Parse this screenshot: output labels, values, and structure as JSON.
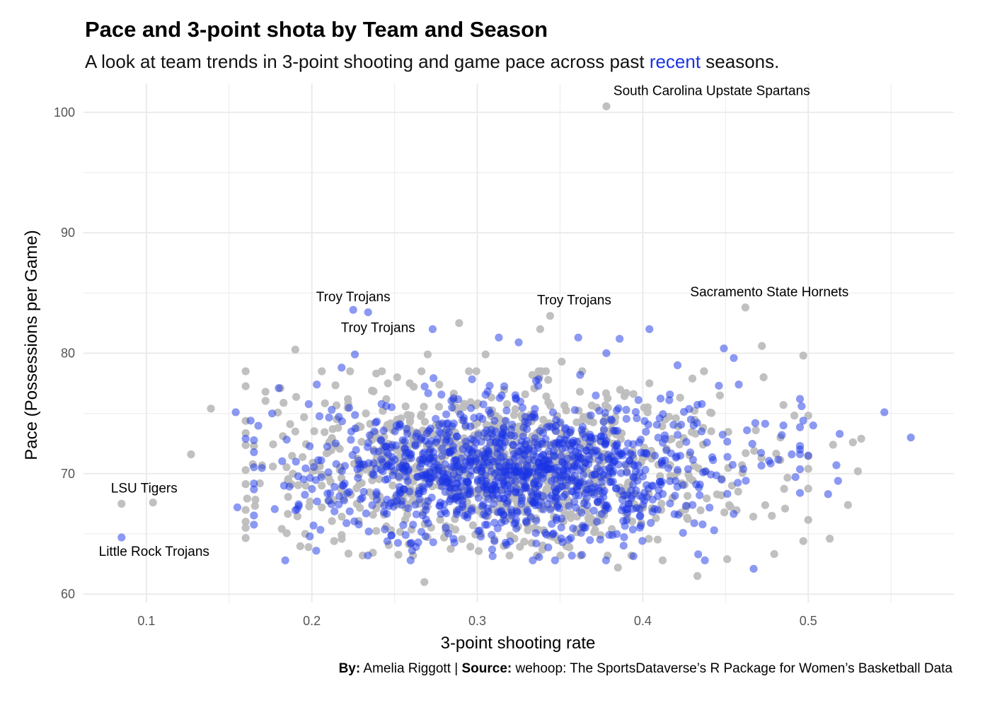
{
  "title": "Pace and 3-point shota by Team and Season",
  "subtitle": {
    "before": "A look at team trends in 3-point shooting and game pace across past ",
    "highlight": "recent",
    "after": " seasons."
  },
  "caption": {
    "by_label": "By:",
    "by_value": " Amelia Riggott | ",
    "source_label": "Source:",
    "source_value": " wehoop: The SportsDataverse’s R Package for Women’s Basketball Data"
  },
  "colors": {
    "past": "#bdbdbd",
    "recent": "#1a33e6",
    "grid": "#ebebeb"
  },
  "chart_data": {
    "type": "scatter",
    "xlabel": "3-point shooting rate",
    "ylabel": "Pace (Possessions per Game)",
    "xlim": [
      0.062,
      0.588
    ],
    "ylim": [
      59.3,
      102.4
    ],
    "xticks": [
      {
        "value": 0.1,
        "label": "0.1"
      },
      {
        "value": 0.2,
        "label": "0.2"
      },
      {
        "value": 0.3,
        "label": "0.3"
      },
      {
        "value": 0.4,
        "label": "0.4"
      },
      {
        "value": 0.5,
        "label": "0.5"
      }
    ],
    "yticks": [
      {
        "value": 60,
        "label": "60"
      },
      {
        "value": 70,
        "label": "70"
      },
      {
        "value": 80,
        "label": "80"
      },
      {
        "value": 90,
        "label": "90"
      },
      {
        "value": 100,
        "label": "100"
      }
    ],
    "grid": true,
    "legend": "none",
    "series": [
      {
        "key": "past",
        "points": [
          [
            0.085,
            67.5
          ],
          [
            0.104,
            67.6
          ],
          [
            0.127,
            71.6
          ],
          [
            0.139,
            75.4
          ],
          [
            0.165,
            72.3
          ],
          [
            0.172,
            76.8
          ],
          [
            0.181,
            77.1
          ],
          [
            0.19,
            80.3
          ],
          [
            0.19,
            73.5
          ],
          [
            0.196,
            65.0
          ],
          [
            0.198,
            63.9
          ],
          [
            0.218,
            64.9
          ],
          [
            0.222,
            75.8
          ],
          [
            0.246,
            77.5
          ],
          [
            0.268,
            61.0
          ],
          [
            0.27,
            79.9
          ],
          [
            0.277,
            77.4
          ],
          [
            0.289,
            82.5
          ],
          [
            0.292,
            75.8
          ],
          [
            0.305,
            79.9
          ],
          [
            0.316,
            64.0
          ],
          [
            0.338,
            82.0
          ],
          [
            0.344,
            83.1
          ],
          [
            0.351,
            79.3
          ],
          [
            0.362,
            76.8
          ],
          [
            0.378,
            100.5
          ],
          [
            0.385,
            62.2
          ],
          [
            0.39,
            76.7
          ],
          [
            0.404,
            77.5
          ],
          [
            0.412,
            62.8
          ],
          [
            0.42,
            74.6
          ],
          [
            0.433,
            61.5
          ],
          [
            0.43,
            77.9
          ],
          [
            0.437,
            78.5
          ],
          [
            0.451,
            62.9
          ],
          [
            0.462,
            83.8
          ],
          [
            0.472,
            80.6
          ],
          [
            0.473,
            78.0
          ],
          [
            0.478,
            66.5
          ],
          [
            0.485,
            75.7
          ],
          [
            0.486,
            67.1
          ],
          [
            0.497,
            64.4
          ],
          [
            0.497,
            79.8
          ],
          [
            0.5,
            70.4
          ],
          [
            0.513,
            64.6
          ],
          [
            0.515,
            72.4
          ],
          [
            0.524,
            67.4
          ],
          [
            0.527,
            72.6
          ],
          [
            0.53,
            70.2
          ],
          [
            0.532,
            72.9
          ]
        ],
        "cloud": {
          "count": 950,
          "x_mean": 0.315,
          "x_sd": 0.068,
          "y_mean": 70.5,
          "y_sd": 3.2,
          "x_range": [
            0.16,
            0.5
          ],
          "y_range": [
            63.2,
            78.5
          ]
        }
      },
      {
        "key": "recent",
        "points": [
          [
            0.085,
            64.7
          ],
          [
            0.154,
            75.1
          ],
          [
            0.155,
            67.2
          ],
          [
            0.16,
            72.9
          ],
          [
            0.163,
            74.4
          ],
          [
            0.176,
            75.0
          ],
          [
            0.18,
            77.1
          ],
          [
            0.203,
            77.4
          ],
          [
            0.212,
            75.3
          ],
          [
            0.218,
            78.8
          ],
          [
            0.225,
            83.6
          ],
          [
            0.226,
            79.9
          ],
          [
            0.234,
            83.4
          ],
          [
            0.273,
            82.0
          ],
          [
            0.313,
            81.3
          ],
          [
            0.325,
            80.9
          ],
          [
            0.361,
            81.3
          ],
          [
            0.378,
            80.0
          ],
          [
            0.386,
            81.2
          ],
          [
            0.39,
            75.3
          ],
          [
            0.404,
            82.0
          ],
          [
            0.416,
            76.1
          ],
          [
            0.421,
            79.0
          ],
          [
            0.446,
            77.3
          ],
          [
            0.449,
            80.4
          ],
          [
            0.455,
            79.6
          ],
          [
            0.458,
            77.4
          ],
          [
            0.463,
            73.6
          ],
          [
            0.467,
            62.1
          ],
          [
            0.468,
            74.2
          ],
          [
            0.484,
            73.2
          ],
          [
            0.485,
            74.0
          ],
          [
            0.49,
            71.6
          ],
          [
            0.495,
            72.0
          ],
          [
            0.496,
            75.6
          ],
          [
            0.497,
            74.4
          ],
          [
            0.5,
            71.5
          ],
          [
            0.503,
            74.0
          ],
          [
            0.512,
            68.3
          ],
          [
            0.517,
            70.7
          ],
          [
            0.518,
            69.4
          ],
          [
            0.519,
            73.3
          ],
          [
            0.546,
            75.1
          ],
          [
            0.562,
            73.0
          ]
        ],
        "cloud": {
          "count": 1150,
          "x_mean": 0.32,
          "x_sd": 0.06,
          "y_mean": 70.3,
          "y_sd": 2.9,
          "x_range": [
            0.165,
            0.495
          ],
          "y_range": [
            62.8,
            78.2
          ]
        }
      }
    ],
    "annotations": [
      {
        "text": "South Carolina Upstate Spartans",
        "x": 0.378,
        "y": 100.5
      },
      {
        "text": "Troy Trojans",
        "x": 0.225,
        "y": 83.6
      },
      {
        "text": "Troy Trojans",
        "x": 0.234,
        "y": 83.4
      },
      {
        "text": "Troy Trojans",
        "x": 0.344,
        "y": 83.1
      },
      {
        "text": "Sacramento State Hornets",
        "x": 0.462,
        "y": 83.8
      },
      {
        "text": "LSU Tigers",
        "x": 0.085,
        "y": 67.5
      },
      {
        "text": "Little Rock Trojans",
        "x": 0.085,
        "y": 64.7
      }
    ]
  }
}
